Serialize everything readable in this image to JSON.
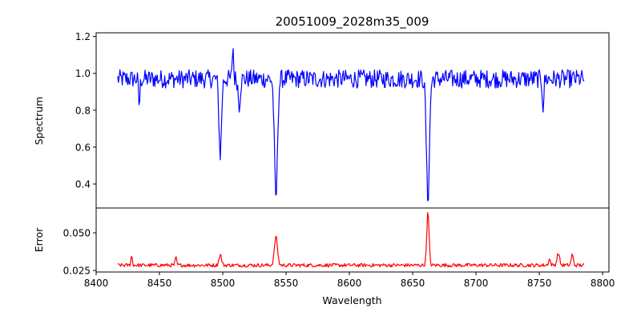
{
  "chart_data": {
    "type": "line",
    "title": "20051009_2028m35_009",
    "xlabel": "Wavelength",
    "xlim": [
      8400,
      8805
    ],
    "xticks": [
      8400,
      8450,
      8500,
      8550,
      8600,
      8650,
      8700,
      8750,
      8800
    ],
    "xrange": [
      8417,
      8786
    ],
    "panels": [
      {
        "ylabel": "Spectrum",
        "color": "#0000ff",
        "ylim": [
          0.27,
          1.22
        ],
        "yticks": [
          "0.4",
          "0.6",
          "0.8",
          "1.0",
          "1.2"
        ],
        "baseline": 0.97,
        "noise": 0.05,
        "features": [
          {
            "center": 8498,
            "depth": 0.41,
            "width": 1.0
          },
          {
            "center": 8542,
            "depth": 0.65,
            "width": 1.2
          },
          {
            "center": 8662,
            "depth": 0.65,
            "width": 1.2
          },
          {
            "center": 8434,
            "depth": 0.14,
            "width": 0.6
          },
          {
            "center": 8513,
            "depth": 0.14,
            "width": 0.8
          },
          {
            "center": 8753,
            "depth": 0.15,
            "width": 0.6
          },
          {
            "center": 8508,
            "depth": -0.18,
            "width": 0.5
          }
        ]
      },
      {
        "ylabel": "Error",
        "color": "#ff0000",
        "ylim": [
          0.024,
          0.0665
        ],
        "yticks": [
          "0.025",
          "0.050"
        ],
        "baseline": 0.0285,
        "noise": 0.0012,
        "features": [
          {
            "center": 8542,
            "depth": -0.019,
            "width": 1.2
          },
          {
            "center": 8662,
            "depth": -0.035,
            "width": 0.9
          },
          {
            "center": 8498,
            "depth": -0.007,
            "width": 1.0
          },
          {
            "center": 8428,
            "depth": -0.006,
            "width": 0.6
          },
          {
            "center": 8463,
            "depth": -0.005,
            "width": 0.6
          },
          {
            "center": 8765,
            "depth": -0.008,
            "width": 1.0
          },
          {
            "center": 8776,
            "depth": -0.007,
            "width": 0.8
          },
          {
            "center": 8758,
            "depth": -0.004,
            "width": 0.8
          }
        ]
      }
    ]
  }
}
